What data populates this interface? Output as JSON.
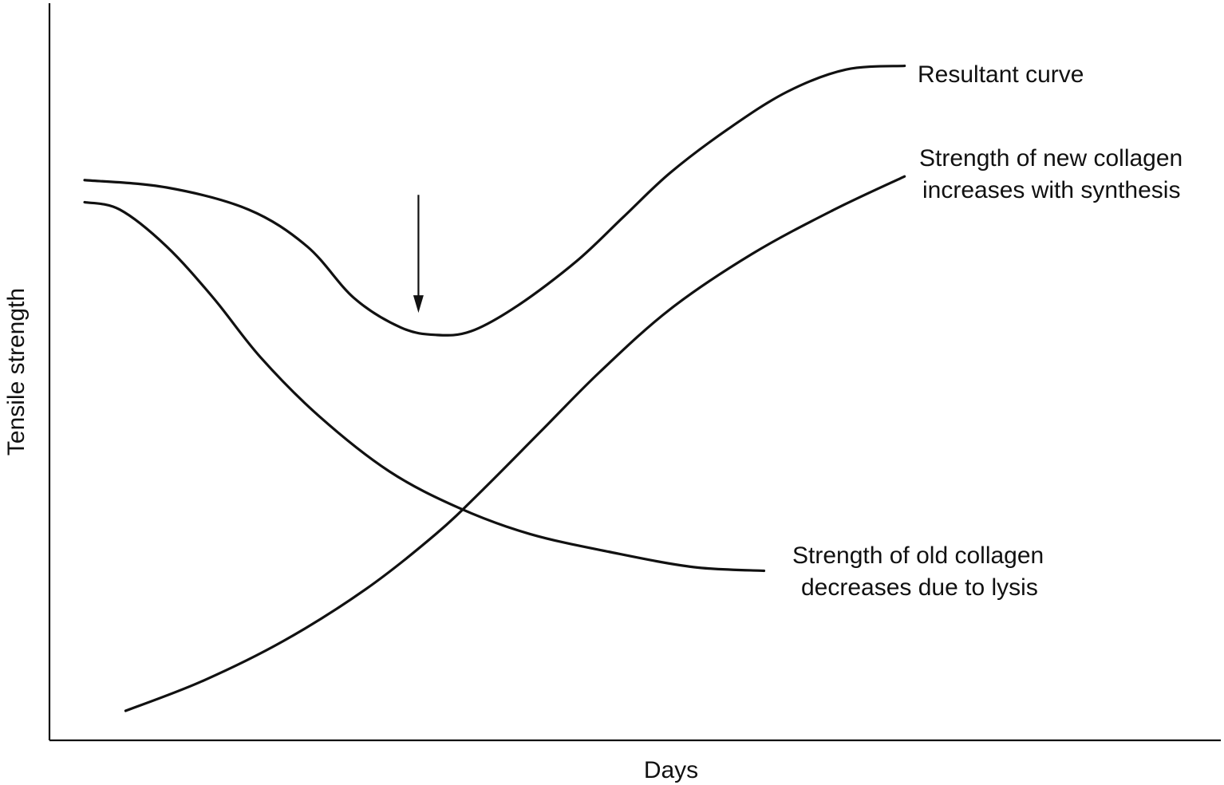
{
  "chart_data": {
    "type": "line",
    "xlabel": "Days",
    "ylabel": "Tensile strength",
    "xlim": [
      0,
      100
    ],
    "ylim": [
      0,
      100
    ],
    "ticks": "none",
    "grid": false,
    "series": [
      {
        "name": "Resultant curve",
        "label_lines": [
          "Resultant curve"
        ],
        "color": "#111111",
        "points": [
          [
            3,
            76
          ],
          [
            10,
            75
          ],
          [
            17,
            72
          ],
          [
            22,
            67
          ],
          [
            26,
            60
          ],
          [
            30,
            56
          ],
          [
            33,
            55
          ],
          [
            36,
            55.5
          ],
          [
            40,
            59
          ],
          [
            45,
            65
          ],
          [
            49,
            71
          ],
          [
            53,
            77
          ],
          [
            58,
            83
          ],
          [
            63,
            88
          ],
          [
            68,
            91
          ],
          [
            73,
            91.5
          ]
        ]
      },
      {
        "name": "Strength of new collagen increases with synthesis",
        "label_lines": [
          "Strength of new collagen",
          "increases with synthesis"
        ],
        "color": "#111111",
        "points": [
          [
            6.5,
            4
          ],
          [
            13,
            8
          ],
          [
            20,
            13.5
          ],
          [
            27,
            20.5
          ],
          [
            33,
            28
          ],
          [
            37,
            34
          ],
          [
            42,
            42
          ],
          [
            47,
            50
          ],
          [
            53,
            58.5
          ],
          [
            60,
            66
          ],
          [
            67,
            72
          ],
          [
            73,
            76.5
          ]
        ]
      },
      {
        "name": "Strength of old collagen decreases due to lysis",
        "label_lines": [
          "Strength of old collagen",
          "decreases due to lysis"
        ],
        "color": "#111111",
        "points": [
          [
            3,
            73
          ],
          [
            6,
            72
          ],
          [
            10,
            67
          ],
          [
            14,
            60
          ],
          [
            18,
            52
          ],
          [
            23,
            44
          ],
          [
            29,
            36.5
          ],
          [
            35,
            31.5
          ],
          [
            41,
            28
          ],
          [
            48,
            25.5
          ],
          [
            55,
            23.5
          ],
          [
            61,
            23
          ]
        ]
      }
    ],
    "annotations": [
      {
        "type": "arrow",
        "x": 31.5,
        "y_from": 74,
        "y_to": 58
      }
    ]
  }
}
